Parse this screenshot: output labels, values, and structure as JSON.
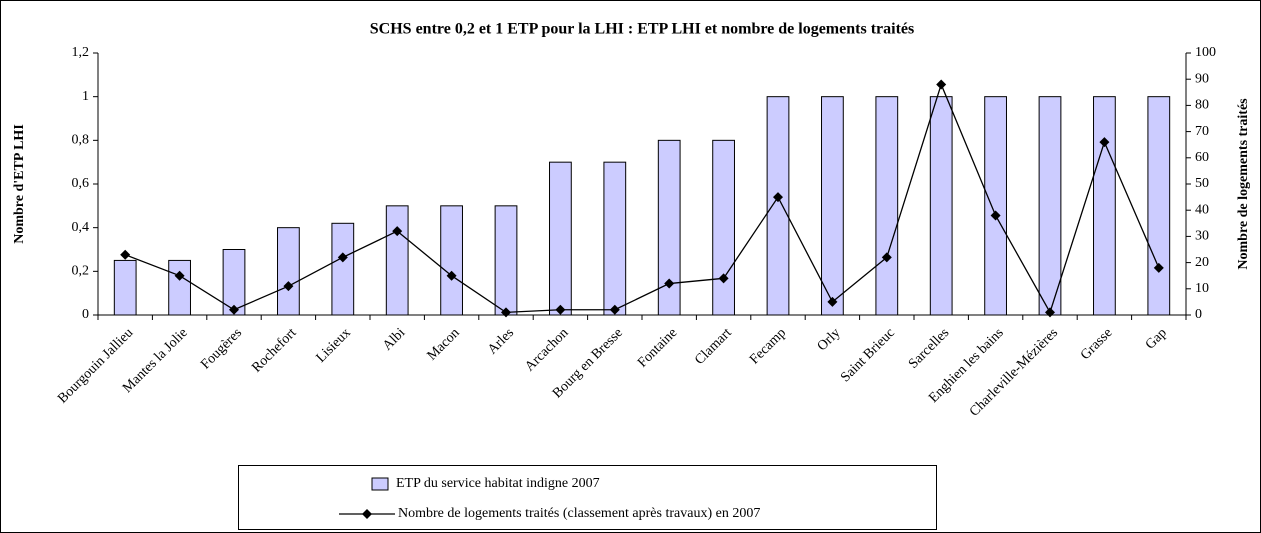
{
  "chart_data": {
    "type": "bar",
    "title": "SCHS entre 0,2 et 1 ETP pour la LHI : ETP LHI et nombre de logements traités",
    "y_label": "Nombre d'ETP LHI",
    "y2_label": "Nombre de logements traités",
    "categories": [
      "Bourgouin Jallieu",
      "Mantes la Jolie",
      "Fougères",
      "Rochefort",
      "Lisieux",
      "Albi",
      "Macon",
      "Arles",
      "Arcachon",
      "Bourg en Bresse",
      "Fontaine",
      "Clamart",
      "Fecamp",
      "Orly",
      "Saint Brieuc",
      "Sarcelles",
      "Enghien les bains",
      "Charleville-Mézières",
      "Grasse",
      "Gap"
    ],
    "series": [
      {
        "name": "ETP du service habitat indigne 2007",
        "type": "bar",
        "color": "#ccccff",
        "values": [
          0.25,
          0.25,
          0.3,
          0.4,
          0.42,
          0.5,
          0.5,
          0.5,
          0.7,
          0.7,
          0.8,
          0.8,
          1,
          1,
          1,
          1,
          1,
          1,
          1,
          1
        ]
      },
      {
        "name": "Nombre de logements traités (classement après travaux) en 2007",
        "type": "line",
        "axis": "y2",
        "color": "#000000",
        "values": [
          23,
          15,
          2,
          11,
          22,
          32,
          15,
          1,
          2,
          2,
          12,
          14,
          45,
          5,
          22,
          88,
          38,
          1,
          66,
          18
        ]
      }
    ],
    "ylim": [
      0,
      1.2
    ],
    "yticks": [
      0,
      {
        "value": 0.2,
        "label": "0,2"
      },
      {
        "value": 0.4,
        "label": "0,4"
      },
      {
        "value": 0.6,
        "label": "0,6"
      },
      {
        "value": 0.8,
        "label": "0,8"
      },
      1,
      {
        "value": 1.2,
        "label": "1,2"
      }
    ],
    "y2lim": [
      0,
      100
    ],
    "y2ticks": [
      0,
      10,
      20,
      30,
      40,
      50,
      60,
      70,
      80,
      90,
      100
    ],
    "legend": "bottom"
  }
}
